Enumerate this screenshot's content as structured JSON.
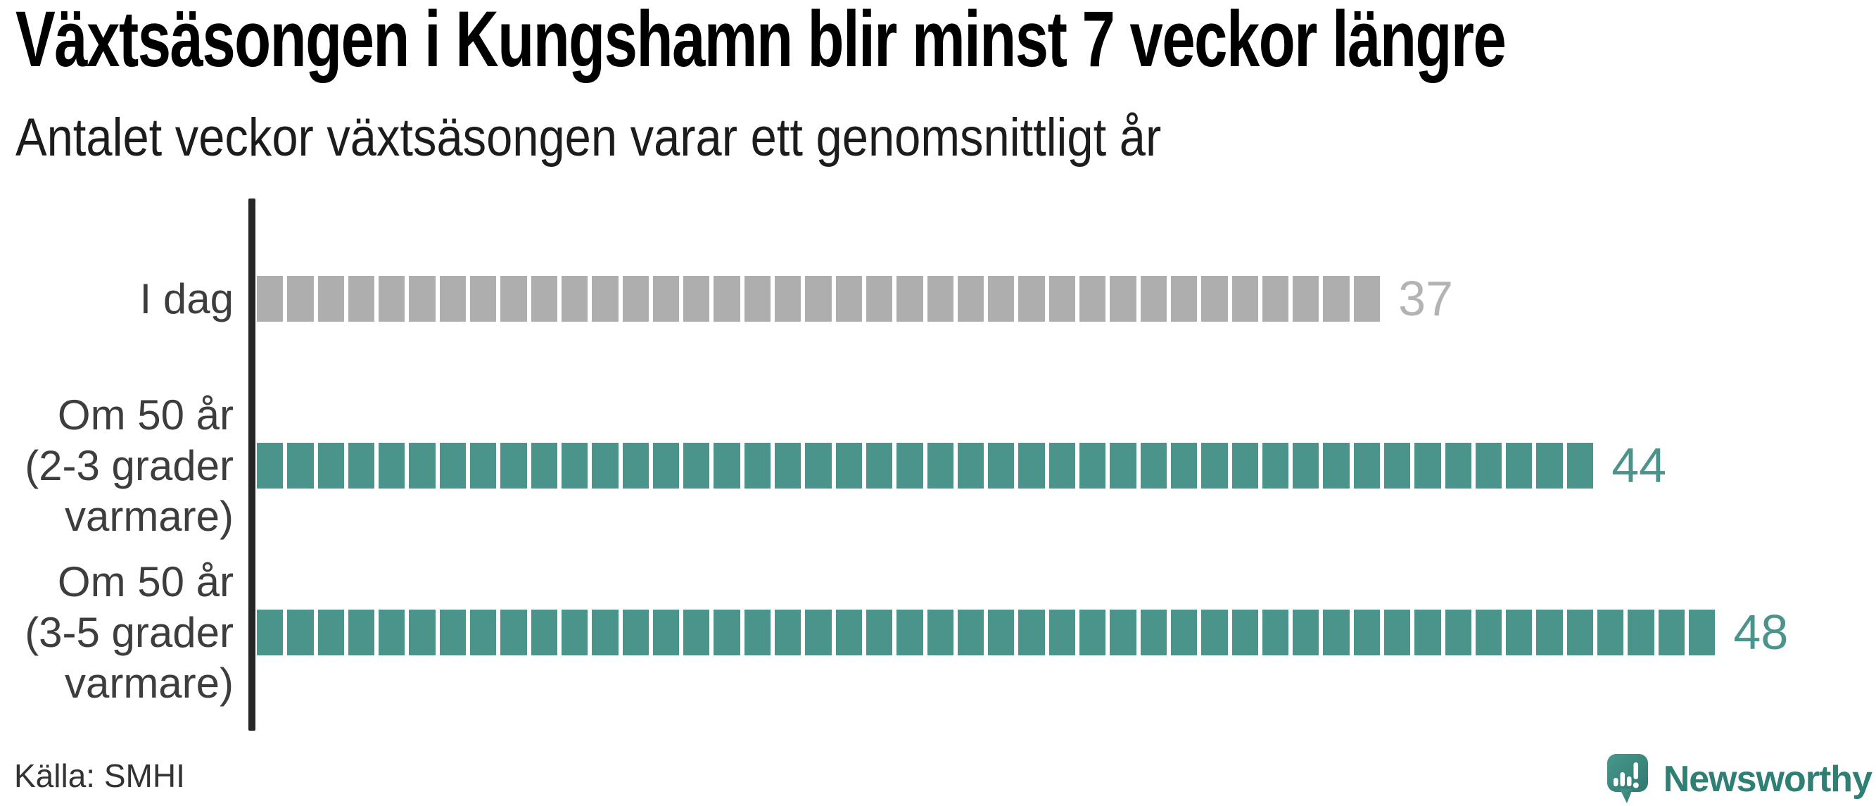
{
  "header": {
    "title": "Växtsäsongen i Kungshamn blir minst 7 veckor längre",
    "subtitle": "Antalet veckor växtsäsongen varar ett genomsnittligt år"
  },
  "chart_data": {
    "type": "bar",
    "variant": "horizontal-unit-segmented",
    "title": "Växtsäsongen i Kungshamn blir minst 7 veckor längre",
    "subtitle": "Antalet veckor växtsäsongen varar ett genomsnittligt år",
    "unit": "veckor",
    "categories": [
      "I dag",
      "Om 50 år (2-3 grader varmare)",
      "Om 50 år (3-5 grader varmare)"
    ],
    "values": [
      37,
      44,
      48
    ],
    "xlabel": "",
    "ylabel": "",
    "xlim": [
      0,
      48
    ],
    "grid": false,
    "legend": false,
    "value_label_position": "end-of-bar",
    "rows": [
      {
        "label_lines": [
          "I dag"
        ],
        "value": 37,
        "color": "#aeaeae",
        "value_color": "#b3b3b3"
      },
      {
        "label_lines": [
          "Om 50 år",
          "(2-3 grader",
          "varmare)"
        ],
        "value": 44,
        "color": "#4b948b",
        "value_color": "#4b948b"
      },
      {
        "label_lines": [
          "Om 50 år",
          "(3-5 grader",
          "varmare)"
        ],
        "value": 48,
        "color": "#4b948b",
        "value_color": "#4b948b"
      }
    ]
  },
  "footer": {
    "source": "Källa: SMHI",
    "logo_text": "Newsworthy"
  },
  "colors": {
    "teal": "#4b948b",
    "gray": "#aeaeae",
    "axis": "#262626",
    "title": "#000000",
    "label_text": "#3d3d3d",
    "logo_teal": "#2e7f74",
    "background": "#ffffff"
  }
}
